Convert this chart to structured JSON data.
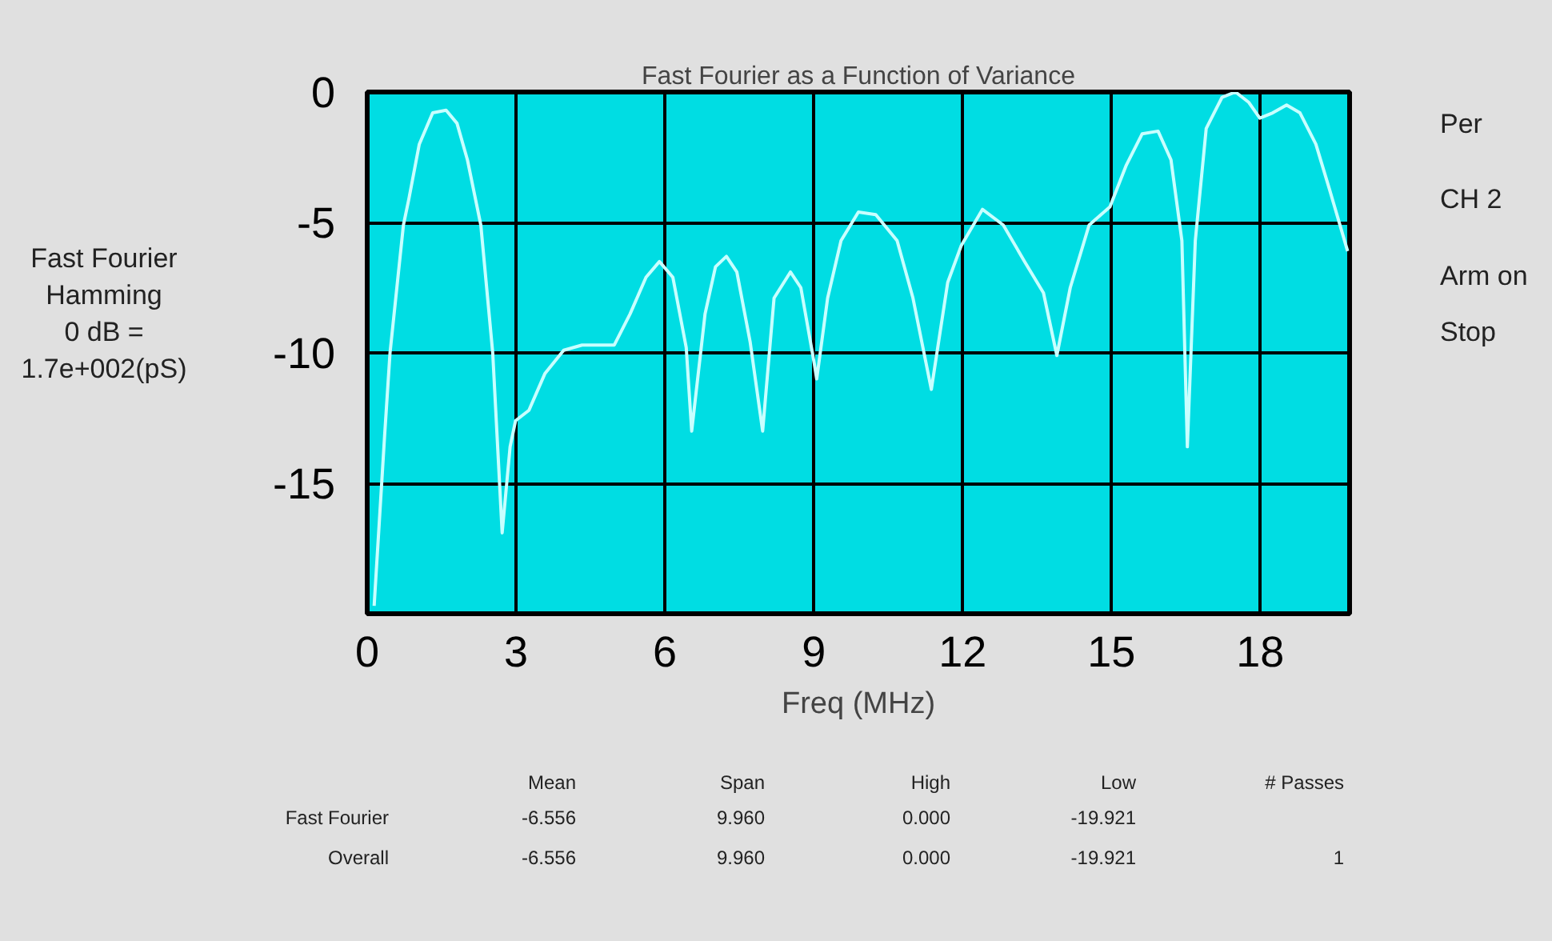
{
  "chart_data": {
    "type": "line",
    "title": "Fast Fourier as a Function of Variance",
    "xlabel": "Freq (MHz)",
    "ylabel": "Fast Fourier\nHamming\n0 dB =\n1.7e+002(pS)",
    "x": [
      0.14,
      0.35,
      0.46,
      0.73,
      0.84,
      1.05,
      1.32,
      1.59,
      1.81,
      2.02,
      2.29,
      2.53,
      2.72,
      2.88,
      2.99,
      3.26,
      3.58,
      3.96,
      4.33,
      4.98,
      5.3,
      5.62,
      5.89,
      6.16,
      6.43,
      6.54,
      6.81,
      7.02,
      7.24,
      7.45,
      7.72,
      7.97,
      8.2,
      8.53,
      8.74,
      9.01,
      9.06,
      9.28,
      9.55,
      9.9,
      10.25,
      10.68,
      11.0,
      11.37,
      11.7,
      11.97,
      12.4,
      12.82,
      13.25,
      13.63,
      13.9,
      14.17,
      14.55,
      14.97,
      15.3,
      15.62,
      15.94,
      16.2,
      16.42,
      16.53,
      16.69,
      16.91,
      17.23,
      17.5,
      17.77,
      17.99,
      18.25,
      18.53,
      18.8,
      19.12,
      19.39,
      19.76
    ],
    "series": [
      {
        "color": "#c8ffff",
        "values": [
          -19.7,
          -13.2,
          -10,
          -5.1,
          -4.1,
          -2.0,
          -0.8,
          -0.7,
          -1.2,
          -2.6,
          -5.1,
          -10,
          -16.9,
          -13.6,
          -12.6,
          -12.2,
          -10.8,
          -9.9,
          -9.7,
          -9.7,
          -8.5,
          -7.1,
          -6.5,
          -7.1,
          -9.8,
          -13.0,
          -8.5,
          -6.7,
          -6.3,
          -6.9,
          -9.6,
          -13.0,
          -7.9,
          -6.9,
          -7.5,
          -10.4,
          -11.0,
          -7.9,
          -5.7,
          -4.6,
          -4.7,
          -5.7,
          -7.9,
          -11.4,
          -7.3,
          -5.9,
          -4.5,
          -5.1,
          -6.5,
          -7.7,
          -10.1,
          -7.5,
          -5.1,
          -4.4,
          -2.8,
          -1.6,
          -1.5,
          -2.6,
          -5.7,
          -13.6,
          -5.7,
          -1.4,
          -0.2,
          0.0,
          -0.4,
          -1.0,
          -0.8,
          -0.5,
          -0.8,
          -2.0,
          -3.7,
          -6.1
        ]
      }
    ],
    "xlim": [
      0,
      19.8
    ],
    "ylim": [
      -20,
      0
    ],
    "xticks": [
      0,
      3,
      6,
      9,
      12,
      15,
      18
    ],
    "yticks": [
      0,
      -5,
      -10,
      -15
    ],
    "grid": true,
    "marker": "none",
    "line_style": "solid",
    "annotations": [
      "Per",
      "CH 2",
      "Arm on",
      "Stop",
      "Mean",
      "Span",
      "High",
      "Low",
      "# Passes",
      "Fast Fourier",
      "-6.556",
      "9.960",
      "0.000",
      "-19.921",
      "Overall",
      "-6.556",
      "9.960",
      "0.000",
      "-19.921",
      "1"
    ]
  }
}
